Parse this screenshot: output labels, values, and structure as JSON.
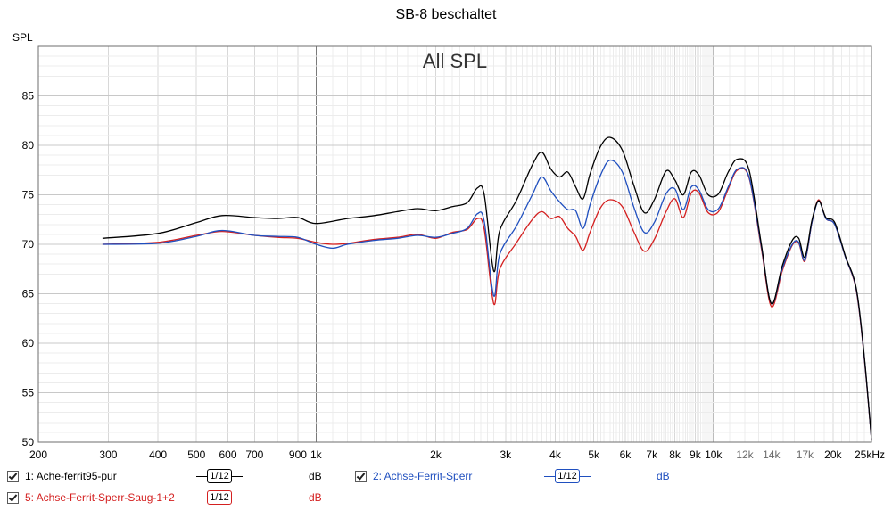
{
  "chart_data": {
    "type": "line",
    "title": "SB-8 beschaltet",
    "annotation": "All SPL",
    "ylabel": "SPL",
    "xunit_label": "25kHz",
    "xscale": "log",
    "xlim": [
      200,
      25000
    ],
    "ylim": [
      50,
      90
    ],
    "grid": true,
    "x_ticks": [
      {
        "value": 200,
        "label": "200"
      },
      {
        "value": 300,
        "label": "300"
      },
      {
        "value": 400,
        "label": "400"
      },
      {
        "value": 500,
        "label": "500"
      },
      {
        "value": 600,
        "label": "600"
      },
      {
        "value": 700,
        "label": "700"
      },
      {
        "value": 900,
        "label": "900"
      },
      {
        "value": 1000,
        "label": "1k"
      },
      {
        "value": 2000,
        "label": "2k"
      },
      {
        "value": 3000,
        "label": "3k"
      },
      {
        "value": 4000,
        "label": "4k"
      },
      {
        "value": 5000,
        "label": "5k"
      },
      {
        "value": 6000,
        "label": "6k"
      },
      {
        "value": 7000,
        "label": "7k"
      },
      {
        "value": 8000,
        "label": "8k"
      },
      {
        "value": 9000,
        "label": "9k"
      },
      {
        "value": 10000,
        "label": "10k"
      },
      {
        "value": 12000,
        "label": "12k"
      },
      {
        "value": 14000,
        "label": "14k"
      },
      {
        "value": 17000,
        "label": "17k"
      },
      {
        "value": 20000,
        "label": "20k"
      }
    ],
    "y_ticks": [
      50,
      55,
      60,
      65,
      70,
      75,
      80,
      85
    ],
    "series": [
      {
        "name": "Ache-ferrit95-pur",
        "color": "#000000",
        "points": [
          [
            290,
            70.6
          ],
          [
            400,
            71.1
          ],
          [
            500,
            72.2
          ],
          [
            580,
            72.9
          ],
          [
            700,
            72.7
          ],
          [
            800,
            72.6
          ],
          [
            900,
            72.7
          ],
          [
            1000,
            72.1
          ],
          [
            1200,
            72.6
          ],
          [
            1400,
            72.9
          ],
          [
            1600,
            73.3
          ],
          [
            1800,
            73.6
          ],
          [
            2000,
            73.4
          ],
          [
            2200,
            73.8
          ],
          [
            2400,
            74.2
          ],
          [
            2550,
            75.7
          ],
          [
            2650,
            75
          ],
          [
            2800,
            67.3
          ],
          [
            2900,
            71.4
          ],
          [
            3200,
            74.5
          ],
          [
            3500,
            78
          ],
          [
            3700,
            79.3
          ],
          [
            3900,
            77.6
          ],
          [
            4100,
            76.8
          ],
          [
            4300,
            77.3
          ],
          [
            4500,
            75.8
          ],
          [
            4700,
            74.6
          ],
          [
            4900,
            77.2
          ],
          [
            5200,
            79.9
          ],
          [
            5500,
            80.8
          ],
          [
            5900,
            79.5
          ],
          [
            6300,
            76
          ],
          [
            6700,
            73.2
          ],
          [
            7100,
            74.5
          ],
          [
            7600,
            77.4
          ],
          [
            8000,
            76.5
          ],
          [
            8400,
            75
          ],
          [
            8800,
            77.3
          ],
          [
            9200,
            77
          ],
          [
            9700,
            75
          ],
          [
            10300,
            75.1
          ],
          [
            10900,
            77.3
          ],
          [
            11500,
            78.6
          ],
          [
            12300,
            77.5
          ],
          [
            13200,
            70
          ],
          [
            14000,
            64
          ],
          [
            14900,
            67.8
          ],
          [
            15800,
            70.4
          ],
          [
            16400,
            70.6
          ],
          [
            17000,
            68.7
          ],
          [
            17700,
            72.4
          ],
          [
            18400,
            74.4
          ],
          [
            19200,
            72.7
          ],
          [
            20200,
            72.2
          ],
          [
            21500,
            68.8
          ],
          [
            22900,
            65.5
          ],
          [
            24000,
            58.5
          ],
          [
            25000,
            50.3
          ]
        ]
      },
      {
        "name": "2: Achse-Ferrit-Sperr",
        "color": "#1f4fbf",
        "points": [
          [
            290,
            70
          ],
          [
            400,
            70.1
          ],
          [
            500,
            70.8
          ],
          [
            580,
            71.4
          ],
          [
            700,
            70.9
          ],
          [
            800,
            70.8
          ],
          [
            900,
            70.7
          ],
          [
            1000,
            70
          ],
          [
            1100,
            69.6
          ],
          [
            1200,
            70
          ],
          [
            1400,
            70.4
          ],
          [
            1600,
            70.6
          ],
          [
            1800,
            70.9
          ],
          [
            2000,
            70.7
          ],
          [
            2200,
            71.1
          ],
          [
            2400,
            71.6
          ],
          [
            2550,
            73.1
          ],
          [
            2650,
            72.3
          ],
          [
            2800,
            64.8
          ],
          [
            2900,
            69
          ],
          [
            3200,
            71.9
          ],
          [
            3500,
            75
          ],
          [
            3700,
            76.8
          ],
          [
            3900,
            75.4
          ],
          [
            4100,
            74.3
          ],
          [
            4300,
            73.5
          ],
          [
            4500,
            73.4
          ],
          [
            4700,
            71.6
          ],
          [
            4900,
            74.1
          ],
          [
            5200,
            77
          ],
          [
            5500,
            78.5
          ],
          [
            5900,
            77.3
          ],
          [
            6300,
            73.8
          ],
          [
            6700,
            71.2
          ],
          [
            7100,
            72.2
          ],
          [
            7600,
            75.1
          ],
          [
            8000,
            75.6
          ],
          [
            8400,
            73.5
          ],
          [
            8800,
            75.8
          ],
          [
            9200,
            75.5
          ],
          [
            9700,
            73.5
          ],
          [
            10300,
            73.6
          ],
          [
            10900,
            75.8
          ],
          [
            11500,
            77.6
          ],
          [
            12300,
            76.8
          ],
          [
            13200,
            69.8
          ],
          [
            14000,
            64
          ],
          [
            14900,
            67.5
          ],
          [
            15800,
            70
          ],
          [
            16400,
            70.2
          ],
          [
            17000,
            68.4
          ],
          [
            17700,
            72.2
          ],
          [
            18400,
            74.4
          ],
          [
            19200,
            72.6
          ],
          [
            20200,
            72
          ],
          [
            21500,
            68.7
          ],
          [
            22900,
            65.4
          ],
          [
            24000,
            58.4
          ],
          [
            25000,
            50.3
          ]
        ]
      },
      {
        "name": "5: Achse-Ferrit-Sperr-Saug-1+2",
        "color": "#d42020",
        "points": [
          [
            290,
            70
          ],
          [
            400,
            70.2
          ],
          [
            500,
            70.9
          ],
          [
            580,
            71.3
          ],
          [
            700,
            70.9
          ],
          [
            800,
            70.7
          ],
          [
            900,
            70.6
          ],
          [
            1000,
            70.2
          ],
          [
            1100,
            70
          ],
          [
            1200,
            70.1
          ],
          [
            1400,
            70.5
          ],
          [
            1600,
            70.7
          ],
          [
            1800,
            71
          ],
          [
            2000,
            70.6
          ],
          [
            2200,
            71.2
          ],
          [
            2400,
            71.5
          ],
          [
            2550,
            72.6
          ],
          [
            2650,
            71.5
          ],
          [
            2800,
            64
          ],
          [
            2900,
            67.5
          ],
          [
            3200,
            70.2
          ],
          [
            3500,
            72.5
          ],
          [
            3700,
            73.3
          ],
          [
            3900,
            72.6
          ],
          [
            4100,
            72.8
          ],
          [
            4300,
            71.6
          ],
          [
            4500,
            70.8
          ],
          [
            4700,
            69.4
          ],
          [
            4900,
            71.3
          ],
          [
            5200,
            73.7
          ],
          [
            5500,
            74.5
          ],
          [
            5900,
            73.8
          ],
          [
            6300,
            71.3
          ],
          [
            6700,
            69.3
          ],
          [
            7100,
            70.5
          ],
          [
            7600,
            73.3
          ],
          [
            8000,
            74.6
          ],
          [
            8400,
            72.7
          ],
          [
            8800,
            75.2
          ],
          [
            9200,
            75.2
          ],
          [
            9700,
            73.2
          ],
          [
            10300,
            73.3
          ],
          [
            10900,
            75.6
          ],
          [
            11500,
            77.5
          ],
          [
            12300,
            76.7
          ],
          [
            13200,
            69.6
          ],
          [
            14000,
            63.7
          ],
          [
            14900,
            67.3
          ],
          [
            15800,
            69.9
          ],
          [
            16400,
            70.1
          ],
          [
            17000,
            68.3
          ],
          [
            17700,
            72.2
          ],
          [
            18400,
            74.5
          ],
          [
            19200,
            72.6
          ],
          [
            20200,
            72
          ],
          [
            21500,
            68.7
          ],
          [
            22900,
            65.3
          ],
          [
            24000,
            58.3
          ],
          [
            25000,
            50.3
          ]
        ]
      }
    ]
  },
  "legend": [
    {
      "label": "1: Ache-ferrit95-pur",
      "smoothing": "1/12",
      "unit": "dB",
      "color": "#000000",
      "checked": true
    },
    {
      "label": "2: Achse-Ferrit-Sperr",
      "smoothing": "1/12",
      "unit": "dB",
      "color": "#1f4fbf",
      "checked": true
    },
    {
      "label": "5: Achse-Ferrit-Sperr-Saug-1+2",
      "smoothing": "1/12",
      "unit": "dB",
      "color": "#d42020",
      "checked": true
    }
  ]
}
